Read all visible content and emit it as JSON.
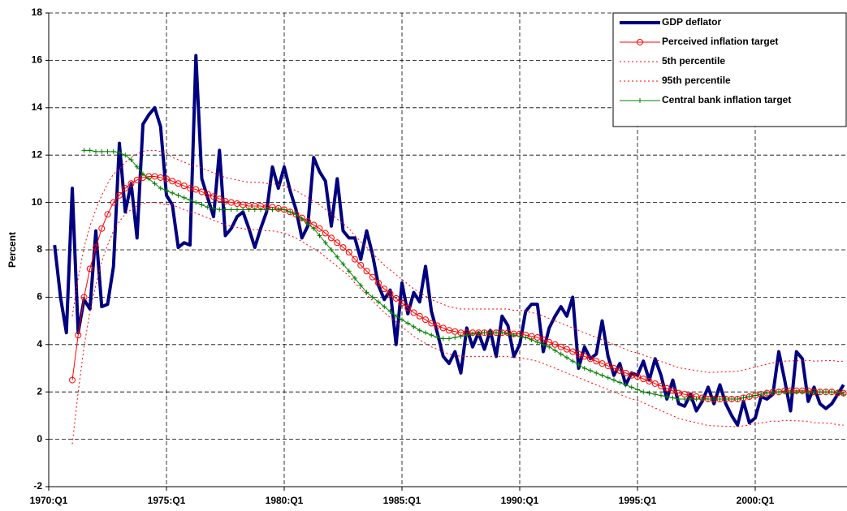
{
  "chart_data": {
    "type": "line",
    "ylabel": "Percent",
    "ylim": [
      -2,
      18
    ],
    "yticks": [
      -2,
      0,
      2,
      4,
      6,
      8,
      10,
      12,
      14,
      16,
      18
    ],
    "grid": true,
    "legend": "upper right",
    "categories": [
      "1970:Q1",
      null,
      null,
      null,
      null,
      null,
      null,
      null,
      null,
      null,
      null,
      null,
      null,
      null,
      null,
      null,
      null,
      null,
      null,
      null,
      "1975:Q1",
      null,
      null,
      null,
      null,
      null,
      null,
      null,
      null,
      null,
      null,
      null,
      null,
      null,
      null,
      null,
      null,
      null,
      null,
      null,
      "1980:Q1",
      null,
      null,
      null,
      null,
      null,
      null,
      null,
      null,
      null,
      null,
      null,
      null,
      null,
      null,
      null,
      null,
      null,
      null,
      null,
      "1985:Q1",
      null,
      null,
      null,
      null,
      null,
      null,
      null,
      null,
      null,
      null,
      null,
      null,
      null,
      null,
      null,
      null,
      null,
      null,
      null,
      "1990:Q1",
      null,
      null,
      null,
      null,
      null,
      null,
      null,
      null,
      null,
      null,
      null,
      null,
      null,
      null,
      null,
      null,
      null,
      null,
      null,
      "1995:Q1",
      null,
      null,
      null,
      null,
      null,
      null,
      null,
      null,
      null,
      null,
      null,
      null,
      null,
      null,
      null,
      null,
      null,
      null,
      null,
      "2000:Q1",
      null,
      null,
      null,
      null,
      null,
      null,
      null,
      null,
      null,
      null,
      null,
      null,
      null,
      null,
      null
    ],
    "series": [
      {
        "name": "GDP deflator",
        "color": "#000080",
        "line_width": 4,
        "marker": "none",
        "dash": false,
        "values": [
          null,
          8.2,
          6.0,
          4.5,
          10.6,
          4.5,
          5.9,
          5.5,
          8.8,
          5.6,
          5.7,
          7.3,
          12.5,
          9.6,
          10.8,
          8.5,
          13.3,
          13.7,
          14.0,
          13.2,
          10.3,
          9.9,
          8.1,
          8.3,
          8.2,
          16.2,
          11.0,
          10.2,
          9.4,
          12.2,
          8.6,
          8.9,
          9.4,
          9.6,
          8.9,
          8.1,
          8.9,
          9.6,
          11.5,
          10.6,
          11.5,
          10.5,
          9.7,
          8.5,
          9.0,
          11.9,
          11.3,
          10.9,
          9.0,
          11.0,
          8.8,
          8.5,
          8.5,
          7.6,
          8.8,
          7.8,
          6.5,
          5.9,
          6.3,
          4.0,
          6.6,
          5.3,
          6.2,
          5.8,
          7.3,
          5.4,
          4.5,
          3.5,
          3.2,
          3.7,
          2.8,
          4.7,
          3.9,
          4.5,
          3.8,
          4.6,
          3.5,
          5.2,
          4.8,
          3.5,
          4.0,
          5.4,
          5.7,
          5.7,
          3.7,
          4.7,
          5.2,
          5.6,
          5.2,
          6.0,
          3.0,
          3.9,
          3.4,
          3.6,
          5.0,
          3.5,
          2.7,
          3.2,
          2.3,
          2.8,
          2.7,
          3.3,
          2.5,
          3.4,
          2.7,
          1.7,
          2.5,
          1.5,
          1.4,
          1.9,
          1.2,
          1.6,
          2.2,
          1.5,
          2.3,
          1.5,
          1.0,
          0.6,
          1.6,
          0.7,
          0.9,
          1.8,
          1.7,
          1.9,
          3.7,
          2.5,
          1.2,
          3.7,
          3.4,
          1.6,
          2.2,
          1.5,
          1.3,
          1.5,
          1.9,
          2.3
        ]
      },
      {
        "name": "Perceived inflation target",
        "color": "#ff0000",
        "line_width": 1,
        "marker": "circle",
        "dash": false,
        "values": [
          null,
          null,
          null,
          null,
          2.5,
          4.4,
          6.0,
          7.2,
          8.1,
          8.9,
          9.5,
          10.0,
          10.3,
          10.6,
          10.8,
          10.95,
          11.05,
          11.1,
          11.1,
          11.05,
          11.0,
          10.9,
          10.8,
          10.7,
          10.6,
          10.55,
          10.45,
          10.35,
          10.25,
          10.15,
          10.05,
          10.0,
          9.95,
          9.9,
          9.85,
          9.85,
          9.85,
          9.8,
          9.8,
          9.75,
          9.7,
          9.6,
          9.5,
          9.35,
          9.2,
          9.05,
          8.9,
          8.7,
          8.5,
          8.3,
          8.1,
          7.9,
          7.6,
          7.35,
          7.1,
          6.85,
          6.6,
          6.35,
          6.15,
          5.95,
          5.75,
          5.55,
          5.35,
          5.2,
          5.05,
          4.9,
          4.8,
          4.7,
          4.6,
          4.55,
          4.5,
          4.5,
          4.5,
          4.5,
          4.5,
          4.5,
          4.5,
          4.5,
          4.5,
          4.45,
          4.45,
          4.4,
          4.35,
          4.3,
          4.2,
          4.1,
          4.0,
          3.9,
          3.8,
          3.7,
          3.6,
          3.5,
          3.4,
          3.3,
          3.2,
          3.1,
          3.0,
          2.9,
          2.8,
          2.7,
          2.65,
          2.55,
          2.45,
          2.35,
          2.25,
          2.15,
          2.05,
          1.95,
          1.9,
          1.85,
          1.8,
          1.75,
          1.7,
          1.7,
          1.7,
          1.7,
          1.7,
          1.7,
          1.75,
          1.8,
          1.85,
          1.9,
          1.95,
          2.0,
          2.0,
          2.05,
          2.05,
          2.05,
          2.05,
          2.05,
          2.0,
          2.0,
          2.0,
          2.0,
          1.95,
          1.95
        ]
      },
      {
        "name": "5th percentile",
        "color": "#ff0000",
        "line_width": 1,
        "marker": "none",
        "dash": true,
        "values": [
          null,
          null,
          null,
          null,
          -0.2,
          2.0,
          3.9,
          5.4,
          6.5,
          7.5,
          8.2,
          8.8,
          9.2,
          9.5,
          9.7,
          9.85,
          9.95,
          10.0,
          10.0,
          9.95,
          9.9,
          9.9,
          9.8,
          9.7,
          9.6,
          9.55,
          9.45,
          9.35,
          9.25,
          9.15,
          9.05,
          9.0,
          8.95,
          8.9,
          8.85,
          8.85,
          8.85,
          8.8,
          8.8,
          8.75,
          8.7,
          8.6,
          8.5,
          8.35,
          8.2,
          8.05,
          7.9,
          7.7,
          7.5,
          7.3,
          7.1,
          6.9,
          6.6,
          6.35,
          6.1,
          5.85,
          5.6,
          5.35,
          5.15,
          4.95,
          4.75,
          4.55,
          4.35,
          4.2,
          4.05,
          3.9,
          3.8,
          3.7,
          3.6,
          3.55,
          3.5,
          3.5,
          3.5,
          3.5,
          3.5,
          3.5,
          3.5,
          3.5,
          3.5,
          3.45,
          3.45,
          3.4,
          3.35,
          3.3,
          3.2,
          3.1,
          3.0,
          2.9,
          2.8,
          2.7,
          2.6,
          2.5,
          2.4,
          2.3,
          2.2,
          2.1,
          2.0,
          1.9,
          1.8,
          1.7,
          1.65,
          1.54,
          1.43,
          1.32,
          1.21,
          1.1,
          0.99,
          0.88,
          0.82,
          0.76,
          0.7,
          0.64,
          0.58,
          0.57,
          0.56,
          0.55,
          0.54,
          0.53,
          0.57,
          0.61,
          0.65,
          0.69,
          0.73,
          0.77,
          0.76,
          0.8,
          0.79,
          0.78,
          0.77,
          0.76,
          0.7,
          0.69,
          0.68,
          0.67,
          0.61,
          0.6
        ]
      },
      {
        "name": "95th percentile",
        "color": "#ff0000",
        "line_width": 1,
        "marker": "none",
        "dash": true,
        "values": [
          null,
          null,
          null,
          null,
          5.2,
          6.8,
          8.1,
          9.0,
          9.7,
          10.3,
          10.8,
          11.2,
          11.4,
          11.7,
          11.9,
          12.05,
          12.15,
          12.2,
          12.2,
          12.15,
          12.1,
          11.9,
          11.8,
          11.7,
          11.6,
          11.55,
          11.45,
          11.35,
          11.25,
          11.15,
          11.05,
          11.0,
          10.95,
          10.9,
          10.85,
          10.85,
          10.85,
          10.8,
          10.8,
          10.75,
          10.7,
          10.6,
          10.5,
          10.35,
          10.2,
          10.05,
          9.9,
          9.7,
          9.5,
          9.3,
          9.1,
          8.9,
          8.6,
          8.35,
          8.1,
          7.85,
          7.6,
          7.35,
          7.15,
          6.95,
          6.75,
          6.55,
          6.35,
          6.2,
          6.05,
          5.9,
          5.8,
          5.7,
          5.6,
          5.55,
          5.5,
          5.5,
          5.5,
          5.5,
          5.5,
          5.5,
          5.5,
          5.5,
          5.5,
          5.45,
          5.45,
          5.4,
          5.35,
          5.3,
          5.2,
          5.1,
          5.0,
          4.9,
          4.8,
          4.7,
          4.6,
          4.5,
          4.4,
          4.3,
          4.2,
          4.1,
          4.0,
          3.9,
          3.8,
          3.7,
          3.65,
          3.56,
          3.47,
          3.38,
          3.29,
          3.2,
          3.11,
          3.02,
          2.98,
          2.94,
          2.9,
          2.86,
          2.82,
          2.83,
          2.84,
          2.85,
          2.86,
          2.87,
          2.93,
          2.99,
          3.05,
          3.11,
          3.17,
          3.23,
          3.24,
          3.3,
          3.31,
          3.32,
          3.33,
          3.34,
          3.3,
          3.31,
          3.32,
          3.33,
          3.29,
          3.3
        ]
      },
      {
        "name": "Central bank inflation target",
        "color": "#008000",
        "line_width": 1,
        "marker": "plus",
        "dash": false,
        "values": [
          null,
          null,
          null,
          null,
          null,
          null,
          12.2,
          12.2,
          12.15,
          12.15,
          12.15,
          12.15,
          12.1,
          12.0,
          11.8,
          11.5,
          11.2,
          11.0,
          10.8,
          10.6,
          10.5,
          10.4,
          10.3,
          10.2,
          10.1,
          10.0,
          9.9,
          9.8,
          9.75,
          9.7,
          9.7,
          9.7,
          9.7,
          9.7,
          9.7,
          9.7,
          9.7,
          9.7,
          9.7,
          9.7,
          9.7,
          9.6,
          9.5,
          9.3,
          9.1,
          8.9,
          8.6,
          8.3,
          8.0,
          7.7,
          7.4,
          7.1,
          6.8,
          6.5,
          6.2,
          6.0,
          5.8,
          5.6,
          5.4,
          5.2,
          5.05,
          4.9,
          4.75,
          4.6,
          4.5,
          4.4,
          4.3,
          4.25,
          4.25,
          4.3,
          4.35,
          4.4,
          4.45,
          4.45,
          4.5,
          4.5,
          4.5,
          4.5,
          4.45,
          4.4,
          4.35,
          4.3,
          4.2,
          4.1,
          4.0,
          3.9,
          3.75,
          3.6,
          3.45,
          3.3,
          3.15,
          3.0,
          2.9,
          2.8,
          2.7,
          2.6,
          2.5,
          2.4,
          2.3,
          2.2,
          2.1,
          2.0,
          1.95,
          1.9,
          1.85,
          1.8,
          1.75,
          1.7,
          1.7,
          1.7,
          1.7,
          1.7,
          1.7,
          1.7,
          1.7,
          1.7,
          1.7,
          1.7,
          1.75,
          1.8,
          1.85,
          1.9,
          1.95,
          2.0,
          2.0,
          2.0,
          2.0,
          2.0,
          2.0,
          2.0,
          2.0,
          2.0,
          2.0,
          2.0,
          2.0,
          1.9
        ]
      }
    ]
  }
}
